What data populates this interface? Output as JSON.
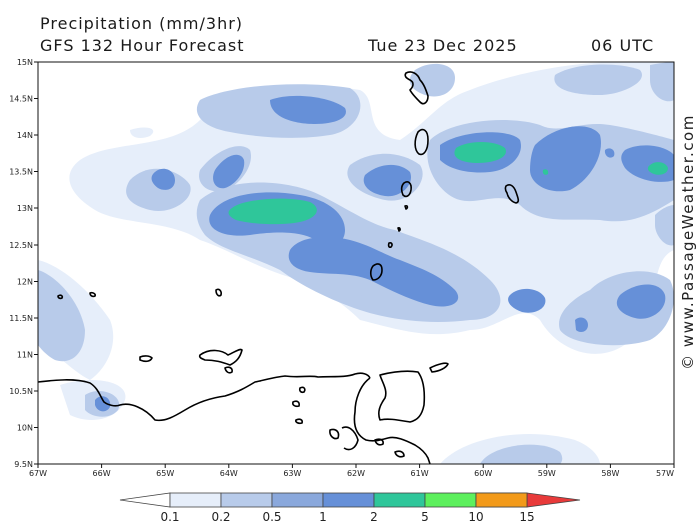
{
  "header": {
    "title": "Precipitation (mm/3hr)",
    "forecast": "GFS 132 Hour Forecast",
    "date": "Tue 23 Dec 2025",
    "time": "06 UTC"
  },
  "credit": "© www.PassageWeather.com",
  "axes": {
    "lat_labels": [
      "15N",
      "14.5N",
      "14N",
      "13.5N",
      "13N",
      "12.5N",
      "12N",
      "11.5N",
      "11N",
      "10.5N",
      "10N",
      "9.5N"
    ],
    "lon_labels": [
      "67W",
      "66W",
      "65W",
      "64W",
      "63W",
      "62W",
      "61W",
      "60W",
      "59W",
      "58W",
      "57W"
    ]
  },
  "legend": {
    "units": "mm/3hr",
    "ticks": [
      "0.1",
      "0.2",
      "0.5",
      "1",
      "2",
      "5",
      "10",
      "15"
    ],
    "colors": [
      "#e6eefa",
      "#b8cbea",
      "#8aa8dc",
      "#6690d8",
      "#2fc69a",
      "#5df05d",
      "#f2e21a",
      "#f29a1a",
      "#e83a3a"
    ]
  },
  "map": {
    "region": "Southeastern Caribbean / Windward Islands",
    "land_outline_color": "#000000",
    "background_color": "#ffffff"
  }
}
